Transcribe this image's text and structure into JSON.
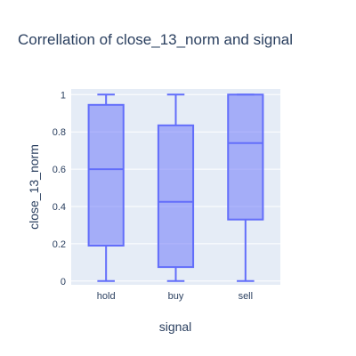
{
  "chart_data": {
    "type": "box",
    "title": "Correllation of close_13_norm and signal",
    "xlabel": "signal",
    "ylabel": "close_13_norm",
    "ylim": [
      -0.02,
      1.03
    ],
    "y_ticks": [
      0,
      0.2,
      0.4,
      0.6,
      0.8,
      1
    ],
    "y_tick_labels": [
      "0",
      "0.2",
      "0.4",
      "0.6",
      "0.8",
      "1"
    ],
    "grid": true,
    "categories": [
      "hold",
      "buy",
      "sell"
    ],
    "boxes": [
      {
        "category": "hold",
        "min": 0,
        "q1": 0.19,
        "median": 0.6,
        "q3": 0.945,
        "max": 1.0
      },
      {
        "category": "buy",
        "min": 0,
        "q1": 0.075,
        "median": 0.425,
        "q3": 0.835,
        "max": 1.0
      },
      {
        "category": "sell",
        "min": 0,
        "q1": 0.33,
        "median": 0.74,
        "q3": 1.0,
        "max": 1.0
      }
    ],
    "colors": {
      "box_fill": "rgba(99,110,250,0.5)",
      "box_line": "#636efa",
      "plot_bg": "#e5ecf6",
      "grid": "#ffffff",
      "text": "#2a3f5f"
    }
  }
}
